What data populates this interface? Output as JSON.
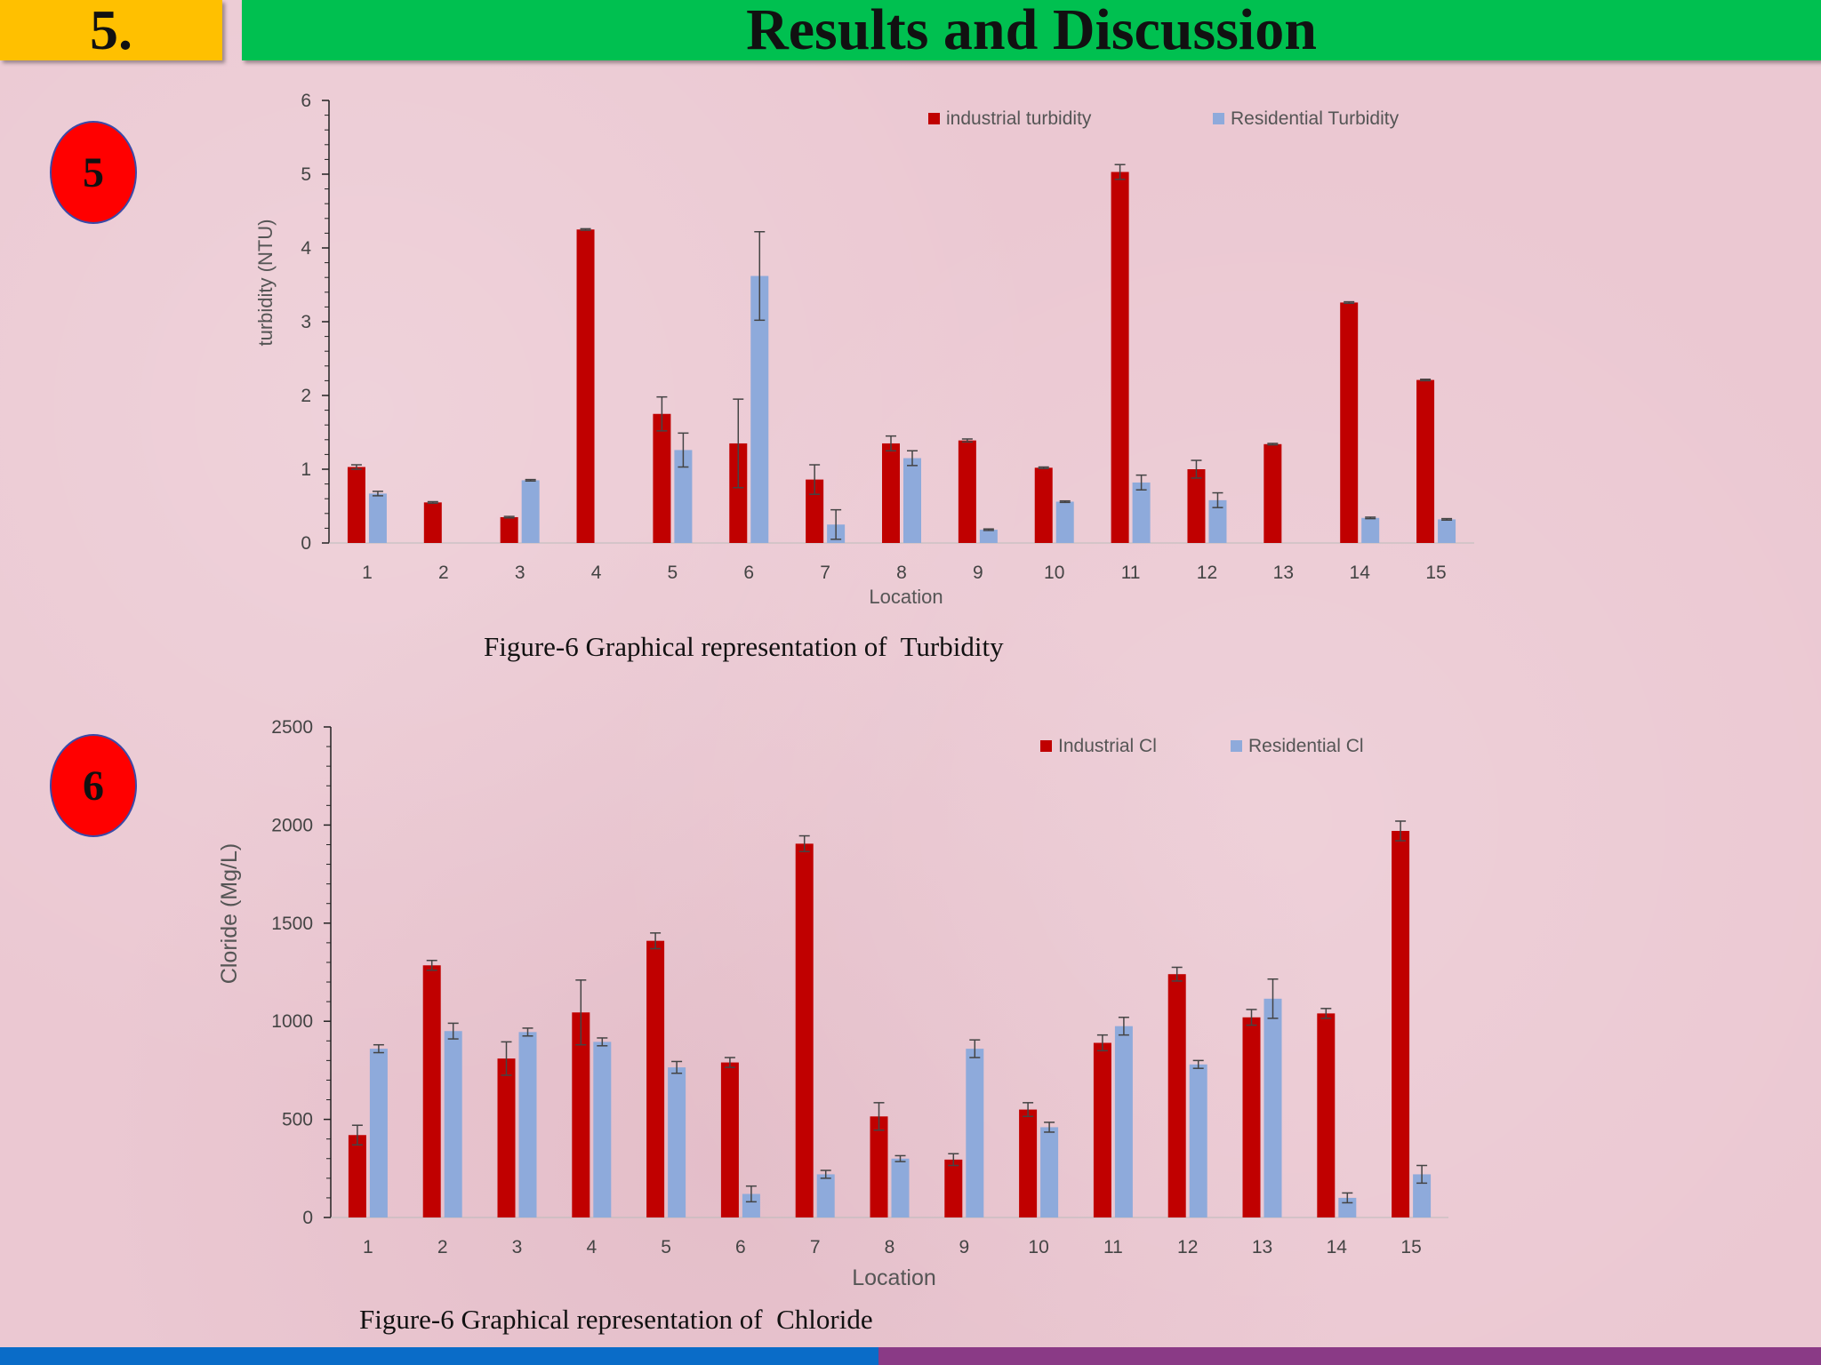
{
  "header": {
    "section_number": "5.",
    "title": "Results and Discussion"
  },
  "badges": [
    "5",
    "6"
  ],
  "colors": {
    "industrial": "#c00000",
    "residential": "#8eaadb"
  },
  "captions": [
    "Figure-6 Graphical representation of  Turbidity",
    "Figure-6 Graphical representation of  Chloride"
  ],
  "chart_data": [
    {
      "type": "bar",
      "categories": [
        "1",
        "2",
        "3",
        "4",
        "5",
        "6",
        "7",
        "8",
        "9",
        "10",
        "11",
        "12",
        "13",
        "14",
        "15"
      ],
      "xlabel": "Location",
      "ylabel": "turbidity (NTU)",
      "ylim": [
        0,
        6
      ],
      "yticks": [
        0,
        1,
        2,
        3,
        4,
        5,
        6
      ],
      "legend_position": "top-right",
      "series": [
        {
          "name": "industrial turbidity",
          "values": [
            1.03,
            0.55,
            0.35,
            4.25,
            1.75,
            1.35,
            0.86,
            1.35,
            1.39,
            1.02,
            5.03,
            1.0,
            1.34,
            3.26,
            2.21
          ],
          "errors": [
            0.03,
            0.01,
            0.01,
            0.01,
            0.23,
            0.6,
            0.2,
            0.1,
            0.02,
            0.01,
            0.1,
            0.12,
            0.01,
            0.01,
            0.01
          ]
        },
        {
          "name": "Residential Turbidity",
          "values": [
            0.67,
            0,
            0.85,
            0,
            1.26,
            3.62,
            0.25,
            1.15,
            0.18,
            0.56,
            0.82,
            0.58,
            0,
            0.34,
            0.32
          ],
          "errors": [
            0.03,
            0,
            0.01,
            0,
            0.23,
            0.6,
            0.2,
            0.1,
            0.01,
            0.01,
            0.1,
            0.1,
            0,
            0.01,
            0.01
          ]
        }
      ]
    },
    {
      "type": "bar",
      "categories": [
        "1",
        "2",
        "3",
        "4",
        "5",
        "6",
        "7",
        "8",
        "9",
        "10",
        "11",
        "12",
        "13",
        "14",
        "15"
      ],
      "xlabel": "Location",
      "ylabel": "Cloride (Mg/L)",
      "ylim": [
        0,
        2500
      ],
      "yticks": [
        0,
        500,
        1000,
        1500,
        2000,
        2500
      ],
      "legend_position": "top-right",
      "series": [
        {
          "name": "Industrial Cl",
          "values": [
            420,
            1285,
            810,
            1045,
            1410,
            790,
            1905,
            515,
            295,
            550,
            890,
            1240,
            1020,
            1040,
            1970
          ],
          "errors": [
            50,
            25,
            85,
            165,
            40,
            25,
            40,
            70,
            30,
            35,
            40,
            35,
            40,
            25,
            50
          ]
        },
        {
          "name": "Residential  Cl",
          "values": [
            860,
            950,
            945,
            895,
            765,
            120,
            220,
            300,
            860,
            460,
            975,
            780,
            1115,
            100,
            220
          ],
          "errors": [
            20,
            40,
            20,
            20,
            30,
            40,
            20,
            15,
            45,
            25,
            45,
            20,
            100,
            25,
            45
          ]
        }
      ]
    }
  ]
}
